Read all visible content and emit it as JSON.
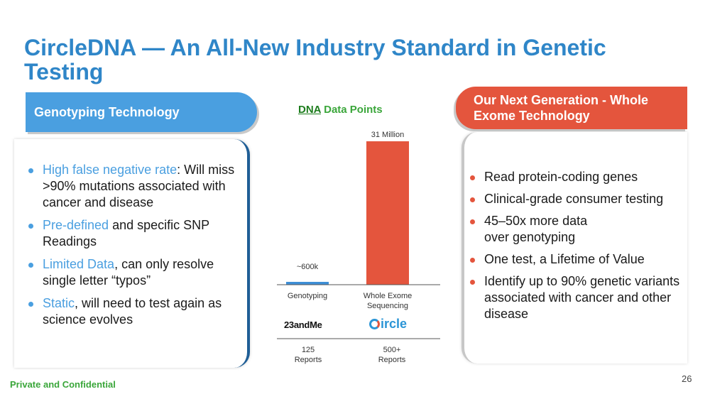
{
  "slide": {
    "title": "CircleDNA — An All-New Industry Standard in Genetic Testing",
    "footer": "Private and Confidential",
    "page_number": "26"
  },
  "left": {
    "banner": "Genotyping Technology",
    "bullets": [
      {
        "highlight": "High false negative rate",
        "rest": ": Will miss >90% mutations associated with cancer and disease"
      },
      {
        "highlight": "Pre-defined",
        "rest": " and specific SNP Readings"
      },
      {
        "highlight": "Limited Data",
        "rest": ", can only resolve single letter “typos”"
      },
      {
        "highlight": "Static",
        "rest": ", will need to test again as science evolves"
      }
    ]
  },
  "right": {
    "banner_line1": "Our Next Generation - Whole",
    "banner_line2": "Exome Technology",
    "bullets": [
      "Read protein-coding genes",
      "Clinical-grade consumer testing",
      "45–50x more data over genotyping",
      "One test, a Lifetime of Value",
      "Identify up to 90% genetic variants  associated with cancer and other disease"
    ]
  },
  "chart_data": {
    "type": "bar",
    "title_underlined": "DNA",
    "title_rest": " Data Points",
    "categories": [
      "Genotyping",
      "Whole Exome Sequencing"
    ],
    "values": [
      600000,
      31000000
    ],
    "data_labels": [
      "~600k",
      "31 Million"
    ],
    "colors": [
      "#3e8fd6",
      "#e4553d"
    ],
    "ylim": [
      0,
      31000000
    ]
  },
  "providers": {
    "left_logo": "23andMe",
    "right_logo": "ircle",
    "left_reports": [
      "125",
      "Reports"
    ],
    "right_reports": [
      "500+",
      "Reports"
    ]
  },
  "colors": {
    "title": "#2f86c8",
    "left_accent": "#4a9fe0",
    "right_accent": "#e4553d",
    "footer": "#3aa63a"
  }
}
